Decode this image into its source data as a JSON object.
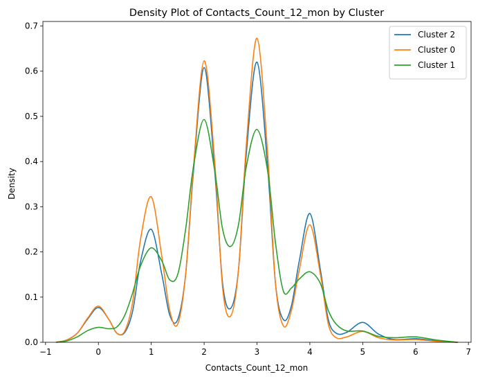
{
  "chart_data": {
    "type": "line",
    "title": "Density Plot of Contacts_Count_12_mon by Cluster",
    "xlabel": "Contacts_Count_12_mon",
    "ylabel": "Density",
    "xlim": [
      -1.05,
      7.05
    ],
    "ylim": [
      0,
      0.71
    ],
    "xticks": [
      -1,
      0,
      1,
      2,
      3,
      4,
      5,
      6,
      7
    ],
    "yticks": [
      0.0,
      0.1,
      0.2,
      0.3,
      0.4,
      0.5,
      0.6,
      0.7
    ],
    "grid": false,
    "legend_position": "top-right",
    "series": [
      {
        "name": "Cluster 2",
        "color": "#1f77b4",
        "x": [
          -0.8,
          -0.6,
          -0.4,
          -0.2,
          0.0,
          0.2,
          0.35,
          0.5,
          0.65,
          0.8,
          1.0,
          1.2,
          1.35,
          1.5,
          1.65,
          1.8,
          2.0,
          2.2,
          2.35,
          2.5,
          2.65,
          2.8,
          3.0,
          3.2,
          3.35,
          3.5,
          3.65,
          3.8,
          4.0,
          4.2,
          4.35,
          4.5,
          4.7,
          5.0,
          5.3,
          5.6,
          6.0,
          6.4,
          6.8
        ],
        "y": [
          0.0,
          0.005,
          0.02,
          0.052,
          0.077,
          0.05,
          0.02,
          0.022,
          0.07,
          0.18,
          0.25,
          0.15,
          0.06,
          0.05,
          0.15,
          0.38,
          0.608,
          0.38,
          0.13,
          0.075,
          0.16,
          0.42,
          0.62,
          0.39,
          0.13,
          0.05,
          0.08,
          0.18,
          0.285,
          0.16,
          0.05,
          0.02,
          0.022,
          0.044,
          0.018,
          0.006,
          0.008,
          0.003,
          0.0
        ]
      },
      {
        "name": "Cluster 0",
        "color": "#ff7f0e",
        "x": [
          -0.8,
          -0.6,
          -0.4,
          -0.2,
          0.0,
          0.2,
          0.35,
          0.5,
          0.65,
          0.8,
          1.0,
          1.2,
          1.35,
          1.5,
          1.65,
          1.8,
          2.0,
          2.2,
          2.35,
          2.5,
          2.65,
          2.8,
          3.0,
          3.2,
          3.35,
          3.5,
          3.65,
          3.8,
          4.0,
          4.2,
          4.35,
          4.5,
          4.7,
          5.0,
          5.3,
          5.6,
          6.0,
          6.4,
          6.8
        ],
        "y": [
          0.0,
          0.005,
          0.02,
          0.054,
          0.08,
          0.05,
          0.02,
          0.025,
          0.09,
          0.23,
          0.322,
          0.19,
          0.07,
          0.04,
          0.15,
          0.39,
          0.623,
          0.4,
          0.12,
          0.058,
          0.16,
          0.44,
          0.673,
          0.42,
          0.13,
          0.036,
          0.07,
          0.16,
          0.26,
          0.15,
          0.04,
          0.01,
          0.012,
          0.024,
          0.01,
          0.005,
          0.006,
          0.002,
          0.0
        ]
      },
      {
        "name": "Cluster 1",
        "color": "#2ca02c",
        "x": [
          -0.8,
          -0.6,
          -0.4,
          -0.2,
          0.0,
          0.2,
          0.35,
          0.5,
          0.65,
          0.8,
          1.0,
          1.2,
          1.35,
          1.5,
          1.65,
          1.8,
          2.0,
          2.2,
          2.35,
          2.5,
          2.65,
          2.8,
          3.0,
          3.2,
          3.35,
          3.5,
          3.65,
          3.8,
          4.0,
          4.2,
          4.35,
          4.5,
          4.7,
          5.0,
          5.3,
          5.6,
          6.0,
          6.4,
          6.8
        ],
        "y": [
          0.0,
          0.003,
          0.012,
          0.026,
          0.033,
          0.03,
          0.034,
          0.06,
          0.11,
          0.17,
          0.209,
          0.18,
          0.138,
          0.15,
          0.25,
          0.39,
          0.493,
          0.38,
          0.25,
          0.212,
          0.26,
          0.39,
          0.471,
          0.38,
          0.22,
          0.113,
          0.12,
          0.14,
          0.156,
          0.13,
          0.07,
          0.04,
          0.025,
          0.025,
          0.013,
          0.01,
          0.012,
          0.005,
          0.0
        ]
      }
    ]
  }
}
